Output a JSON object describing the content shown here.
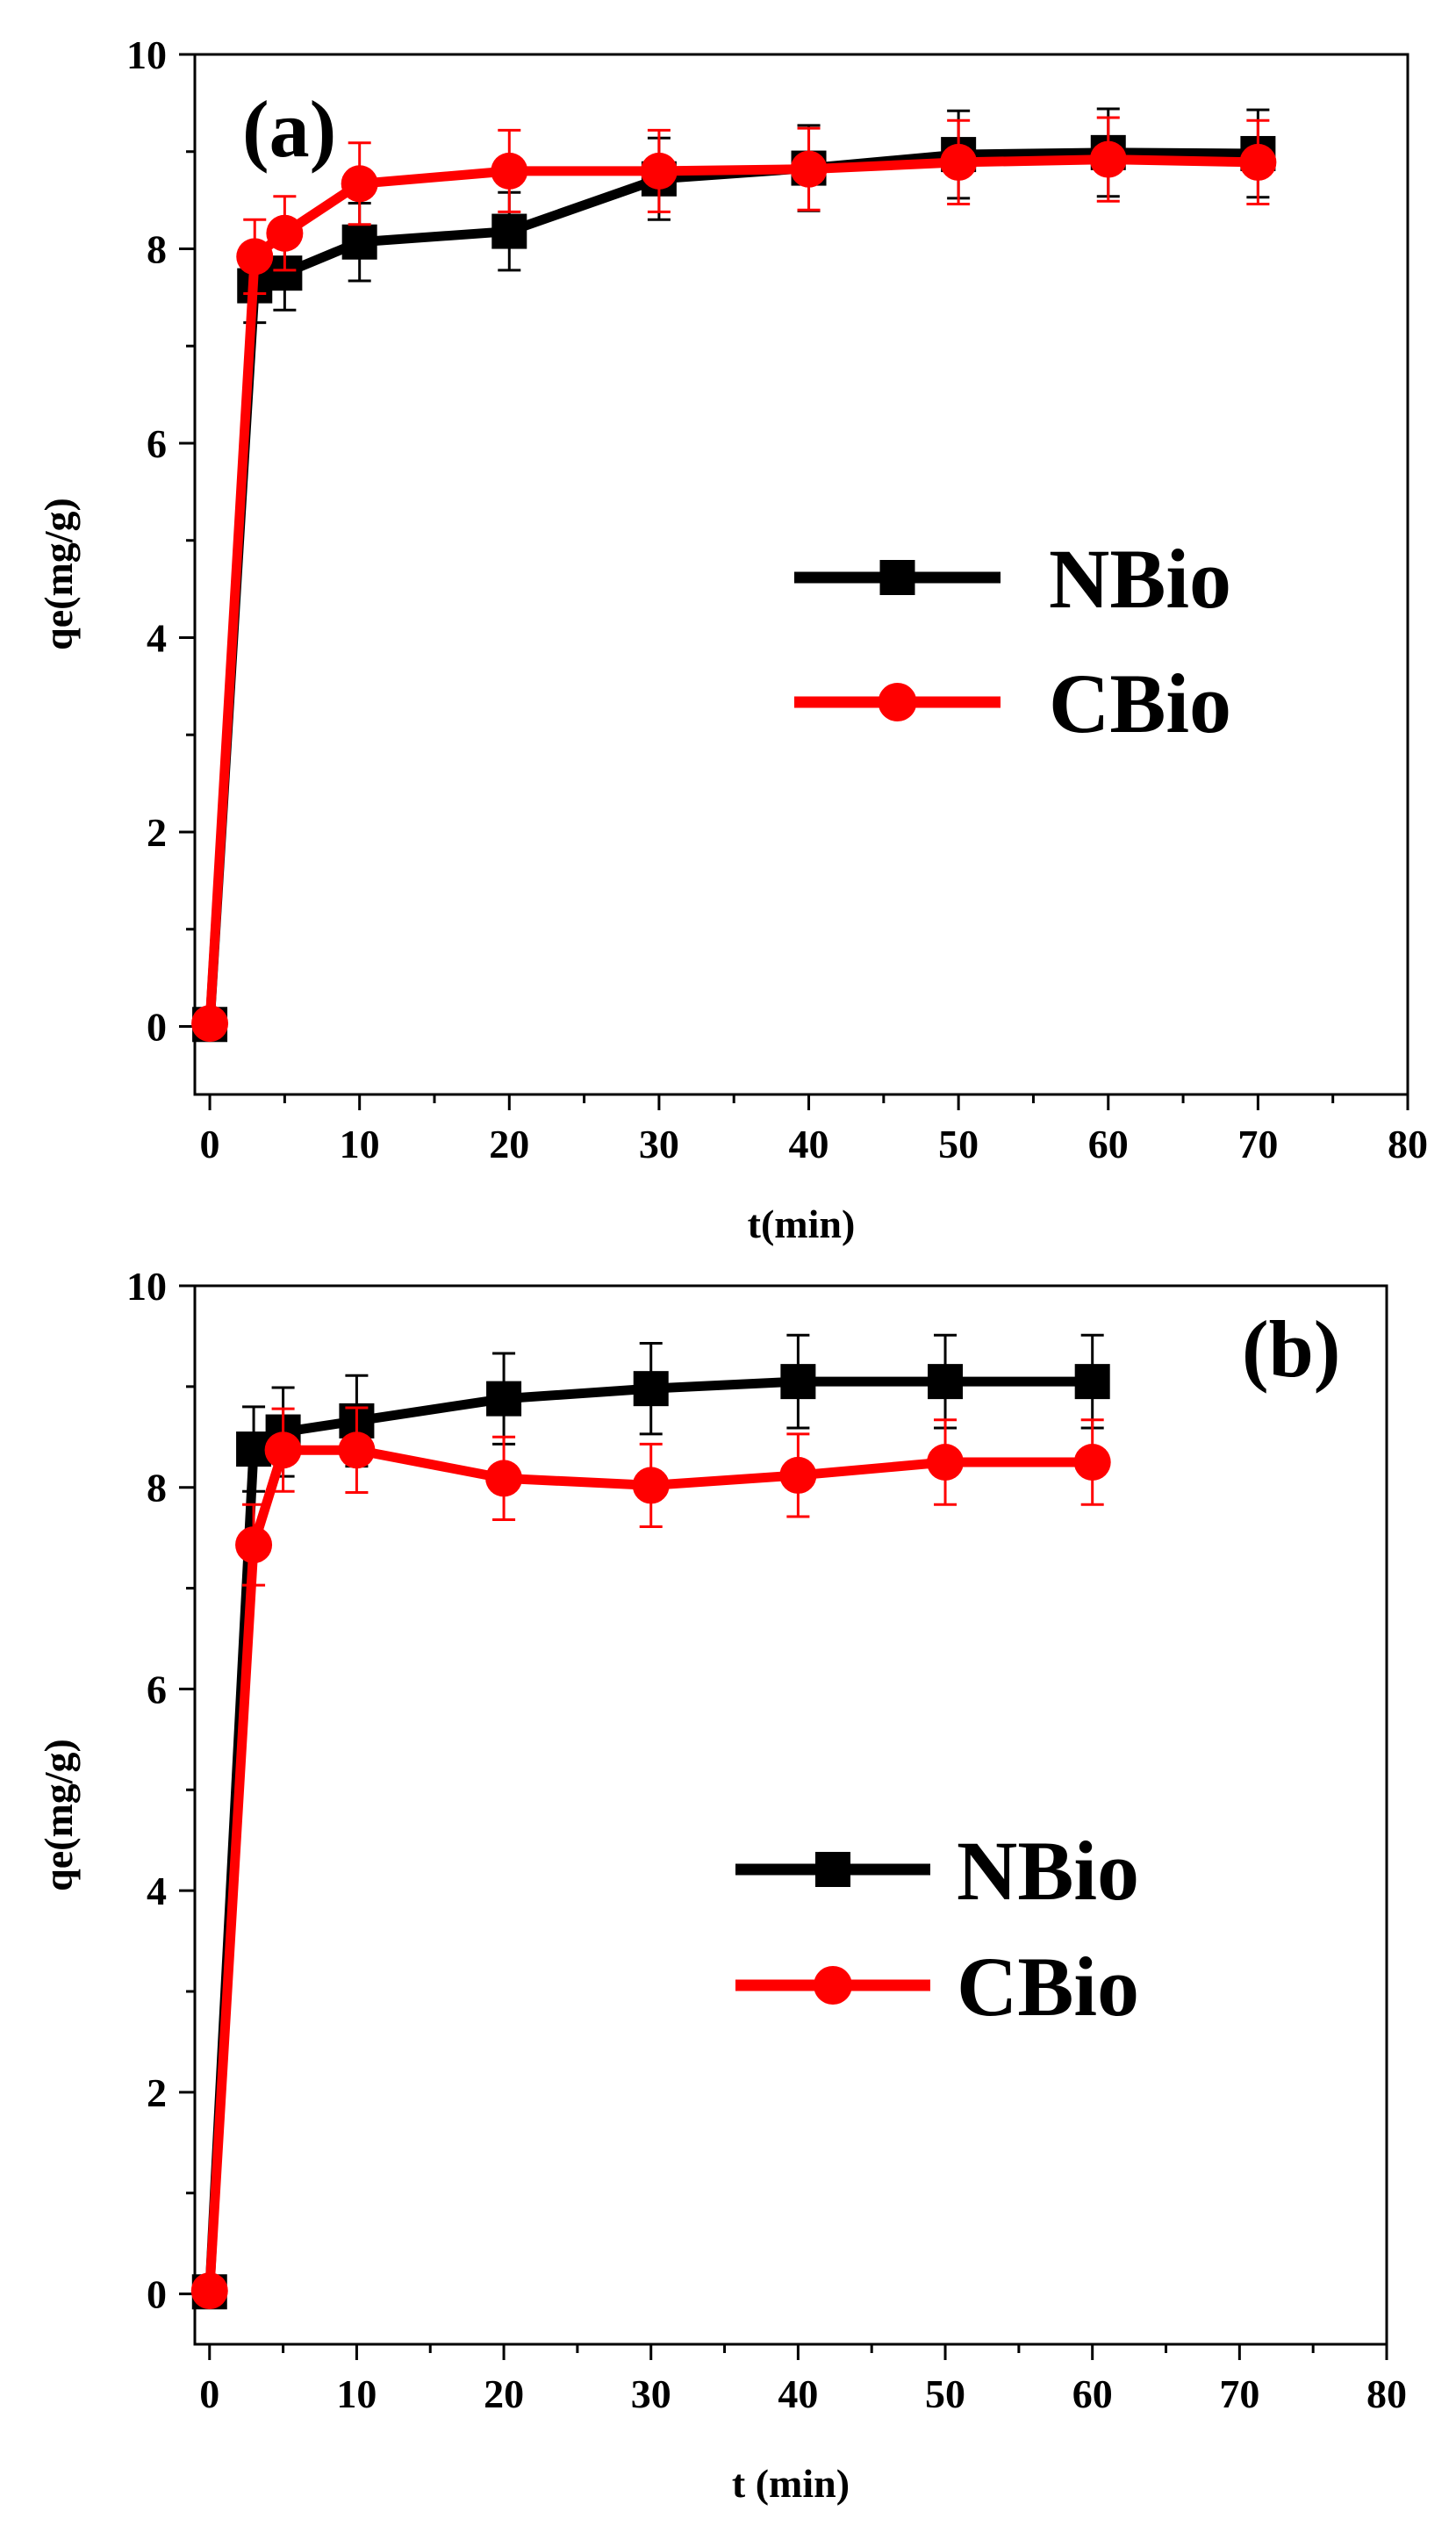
{
  "chart_data": [
    {
      "type": "line",
      "panel_label": "(a)",
      "xlabel": "t(min)",
      "ylabel": "qe(mg/g)",
      "xlim": [
        -1,
        80
      ],
      "ylim": [
        -0.7,
        10
      ],
      "xticks": [
        0,
        10,
        20,
        30,
        40,
        50,
        60,
        70,
        80
      ],
      "yticks": [
        0,
        2,
        4,
        6,
        8,
        10
      ],
      "legend_position": "center-right",
      "series": [
        {
          "name": "NBio",
          "color": "#000000",
          "marker": "square",
          "x": [
            0,
            3,
            5,
            10,
            20,
            30,
            40,
            50,
            60,
            70
          ],
          "y": [
            0.02,
            7.62,
            7.75,
            8.07,
            8.18,
            8.72,
            8.83,
            8.97,
            8.99,
            8.98
          ],
          "err": [
            0,
            0.38,
            0.38,
            0.4,
            0.4,
            0.42,
            0.44,
            0.45,
            0.45,
            0.45
          ]
        },
        {
          "name": "CBio",
          "color": "#ff0000",
          "marker": "circle",
          "x": [
            0,
            3,
            5,
            10,
            20,
            30,
            40,
            50,
            60,
            70
          ],
          "y": [
            0.03,
            7.92,
            8.16,
            8.67,
            8.8,
            8.8,
            8.82,
            8.89,
            8.92,
            8.89
          ],
          "err": [
            0,
            0.38,
            0.38,
            0.42,
            0.42,
            0.42,
            0.42,
            0.43,
            0.43,
            0.43
          ]
        }
      ]
    },
    {
      "type": "line",
      "panel_label": "(b)",
      "xlabel": "t (min)",
      "ylabel": "qe(mg/g)",
      "xlim": [
        -1,
        80
      ],
      "ylim": [
        -0.5,
        10
      ],
      "xticks": [
        0,
        10,
        20,
        30,
        40,
        50,
        60,
        70,
        80
      ],
      "yticks": [
        0,
        2,
        4,
        6,
        8,
        10
      ],
      "legend_position": "center-right",
      "series": [
        {
          "name": "NBio",
          "color": "#000000",
          "marker": "square",
          "x": [
            0,
            3,
            5,
            10,
            20,
            30,
            40,
            50,
            60
          ],
          "y": [
            0.02,
            8.38,
            8.55,
            8.66,
            8.88,
            8.98,
            9.05,
            9.05,
            9.05
          ],
          "err": [
            0,
            0.42,
            0.44,
            0.45,
            0.45,
            0.45,
            0.46,
            0.46,
            0.46
          ]
        },
        {
          "name": "CBio",
          "color": "#ff0000",
          "marker": "circle",
          "x": [
            0,
            3,
            5,
            10,
            20,
            30,
            40,
            50,
            60
          ],
          "y": [
            0.03,
            7.43,
            8.37,
            8.37,
            8.09,
            8.02,
            8.12,
            8.25,
            8.25
          ],
          "err": [
            0,
            0.4,
            0.41,
            0.42,
            0.41,
            0.41,
            0.41,
            0.42,
            0.42
          ]
        }
      ]
    }
  ]
}
